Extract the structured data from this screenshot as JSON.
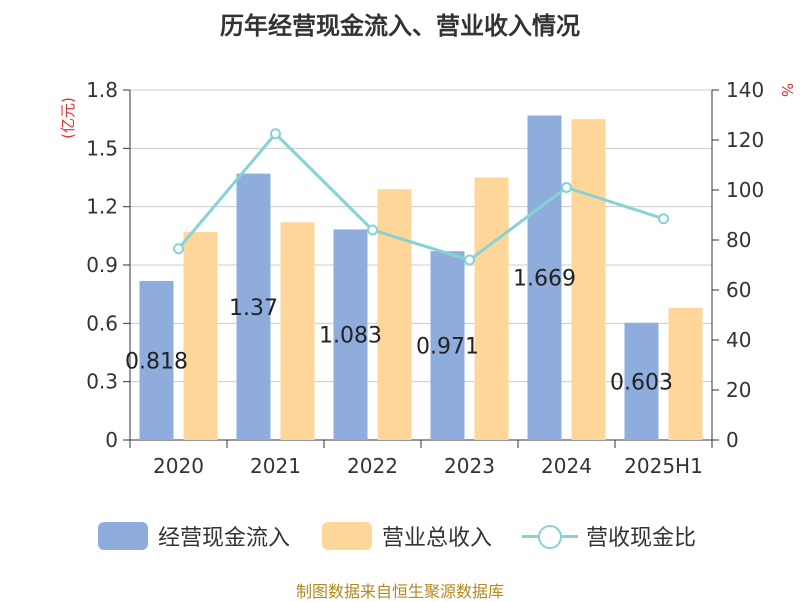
{
  "title": "历年经营现金流入、营业收入情况",
  "source": "制图数据来自恒生聚源数据库",
  "chart_data": {
    "type": "bar",
    "categories": [
      "2020",
      "2021",
      "2022",
      "2023",
      "2024",
      "2025H1"
    ],
    "left_axis": {
      "label": "(亿元)",
      "ylim": [
        0,
        1.8
      ],
      "ticks": [
        "0",
        "0.3",
        "0.6",
        "0.9",
        "1.2",
        "1.5",
        "1.8"
      ]
    },
    "right_axis": {
      "label": "%",
      "ylim": [
        0,
        140
      ],
      "ticks": [
        "0",
        "20",
        "40",
        "60",
        "80",
        "100",
        "120",
        "140"
      ]
    },
    "grid": true,
    "legend_position": "bottom",
    "series": [
      {
        "name": "经营现金流入",
        "type": "bar",
        "axis": "left",
        "color": "#8eaddc",
        "values": [
          0.818,
          1.37,
          1.083,
          0.971,
          1.669,
          0.603
        ],
        "data_labels": [
          "0.818",
          "1.37",
          "1.083",
          "0.971",
          "1.669",
          "0.603"
        ]
      },
      {
        "name": "营业总收入",
        "type": "bar",
        "axis": "left",
        "color": "#ffd699",
        "values": [
          1.07,
          1.12,
          1.29,
          1.35,
          1.65,
          0.68
        ]
      },
      {
        "name": "营收现金比",
        "type": "line",
        "axis": "right",
        "color": "#86d3d6",
        "values": [
          76.5,
          122.5,
          84.0,
          72.0,
          101.0,
          88.5
        ]
      }
    ]
  }
}
